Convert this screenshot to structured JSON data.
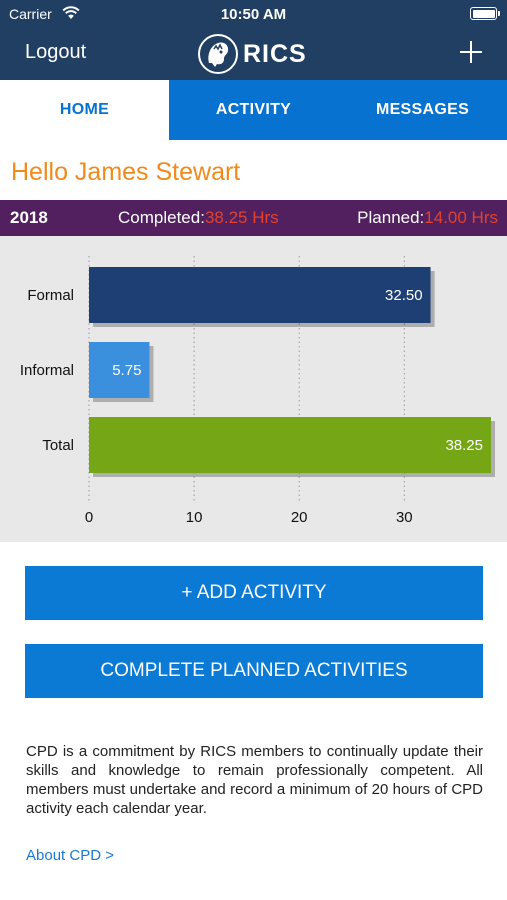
{
  "status_bar": {
    "carrier": "Carrier",
    "time": "10:50 AM"
  },
  "nav": {
    "logout_label": "Logout",
    "logo_text": "RICS",
    "add_icon": "plus-icon"
  },
  "tabs": [
    {
      "label": "HOME",
      "active": true
    },
    {
      "label": "ACTIVITY",
      "active": false
    },
    {
      "label": "MESSAGES",
      "active": false
    }
  ],
  "greeting": "Hello James Stewart",
  "summary": {
    "year": "2018",
    "completed_label": "Completed:",
    "completed_value": "38.25 Hrs",
    "planned_label": "Planned:",
    "planned_value": "14.00 Hrs"
  },
  "chart_data": {
    "type": "bar",
    "orientation": "horizontal",
    "categories": [
      "Formal",
      "Informal",
      "Total"
    ],
    "values": [
      32.5,
      5.75,
      38.25
    ],
    "value_labels": [
      "32.50",
      "5.75",
      "38.25"
    ],
    "colors": [
      "#1e3f73",
      "#3a90dc",
      "#74a615"
    ],
    "x_ticks": [
      0,
      10,
      20,
      30
    ],
    "xlim": [
      0,
      38.25
    ],
    "grid": true
  },
  "buttons": {
    "add_activity": "+ ADD ACTIVITY",
    "complete_planned": "COMPLETE PLANNED ACTIVITIES"
  },
  "info_text": "CPD is a commitment by RICS members to continually update their skills and knowledge to remain professionally competent. All members must undertake and record a minimum of 20 hours of CPD activity each calendar year.",
  "about_link": "About CPD >"
}
